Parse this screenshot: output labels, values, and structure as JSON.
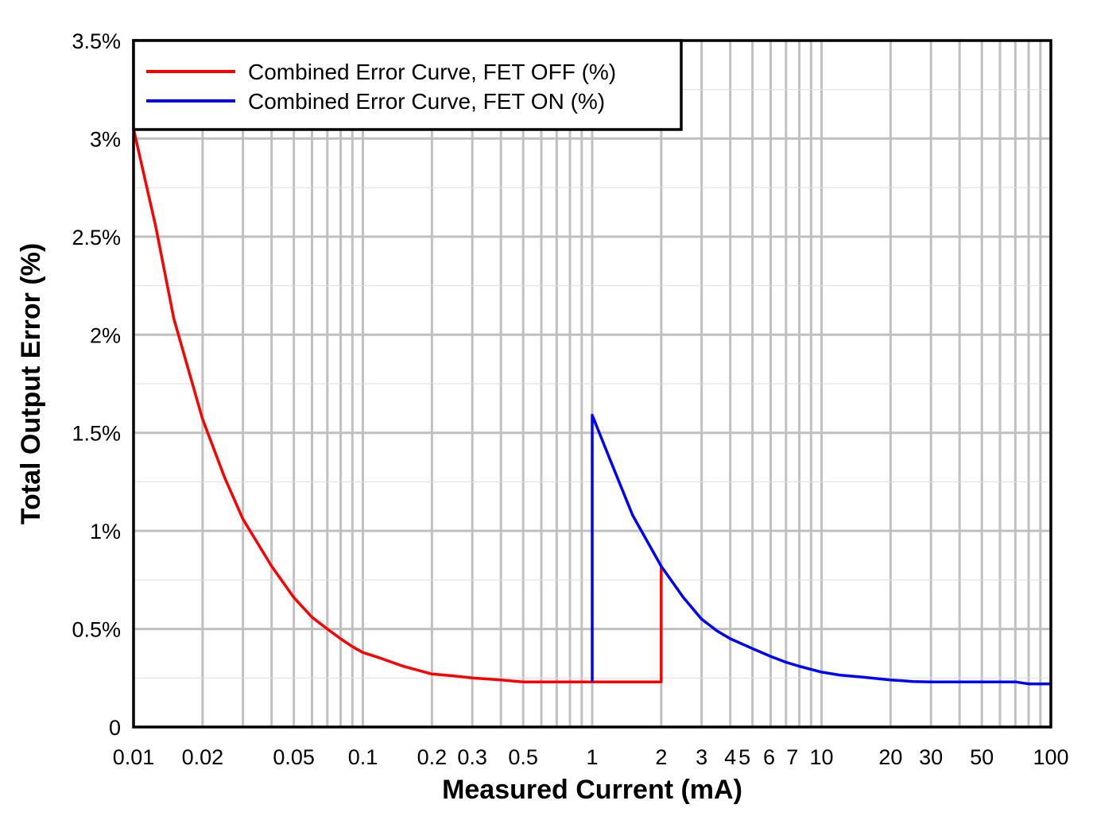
{
  "chart_data": {
    "type": "line",
    "xscale": "log",
    "xlim": [
      0.01,
      100
    ],
    "ylim": [
      0,
      3.5
    ],
    "xlabel": "Measured Current (mA)",
    "ylabel": "Total Output Error (%)",
    "xticks": [
      {
        "v": 0.01,
        "label": "0.01"
      },
      {
        "v": 0.02,
        "label": "0.02"
      },
      {
        "v": 0.05,
        "label": "0.05"
      },
      {
        "v": 0.1,
        "label": "0.1"
      },
      {
        "v": 0.2,
        "label": "0.2"
      },
      {
        "v": 0.3,
        "label": "0.3"
      },
      {
        "v": 0.5,
        "label": "0.5"
      },
      {
        "v": 1,
        "label": "1"
      },
      {
        "v": 2,
        "label": "2"
      },
      {
        "v": 3,
        "label": "3"
      },
      {
        "v": 4,
        "label": "4"
      },
      {
        "v": 5,
        "label": "5"
      },
      {
        "v": 6,
        "label": "6"
      },
      {
        "v": 7,
        "label": "7"
      },
      {
        "v": 10,
        "label": "10"
      },
      {
        "v": 20,
        "label": "20"
      },
      {
        "v": 30,
        "label": "30"
      },
      {
        "v": 50,
        "label": "50"
      },
      {
        "v": 100,
        "label": "100"
      }
    ],
    "yticks": [
      {
        "v": 0,
        "label": "0"
      },
      {
        "v": 0.5,
        "label": "0.5%"
      },
      {
        "v": 1,
        "label": "1%"
      },
      {
        "v": 1.5,
        "label": "1.5%"
      },
      {
        "v": 2,
        "label": "2%"
      },
      {
        "v": 2.5,
        "label": "2.5%"
      },
      {
        "v": 3,
        "label": "3%"
      },
      {
        "v": 3.5,
        "label": "3.5%"
      }
    ],
    "legend_position": "top-left",
    "series": [
      {
        "name": "Combined Error Curve, FET OFF (%)",
        "color": "#ff0000",
        "x": [
          0.01,
          0.0125,
          0.015,
          0.02,
          0.025,
          0.03,
          0.04,
          0.05,
          0.06,
          0.07,
          0.08,
          0.09,
          0.1,
          0.12,
          0.15,
          0.2,
          0.25,
          0.3,
          0.4,
          0.5,
          0.7,
          1,
          1.5,
          2,
          2
        ],
        "y": [
          3.05,
          2.55,
          2.08,
          1.57,
          1.27,
          1.06,
          0.82,
          0.66,
          0.56,
          0.5,
          0.45,
          0.41,
          0.38,
          0.35,
          0.31,
          0.27,
          0.26,
          0.25,
          0.24,
          0.23,
          0.23,
          0.23,
          0.23,
          0.23,
          0.82
        ]
      },
      {
        "name": "Combined Error Curve, FET ON (%)",
        "color": "#0000ff",
        "x": [
          1,
          1,
          1.2,
          1.5,
          2,
          2.5,
          3,
          3.5,
          4,
          5,
          6,
          7,
          8,
          10,
          12,
          15,
          20,
          25,
          30,
          40,
          50,
          60,
          70,
          80,
          100
        ],
        "y": [
          0.23,
          1.59,
          1.36,
          1.08,
          0.82,
          0.66,
          0.55,
          0.49,
          0.45,
          0.4,
          0.36,
          0.33,
          0.31,
          0.28,
          0.265,
          0.255,
          0.24,
          0.232,
          0.23,
          0.23,
          0.23,
          0.23,
          0.23,
          0.22,
          0.22
        ]
      }
    ]
  }
}
